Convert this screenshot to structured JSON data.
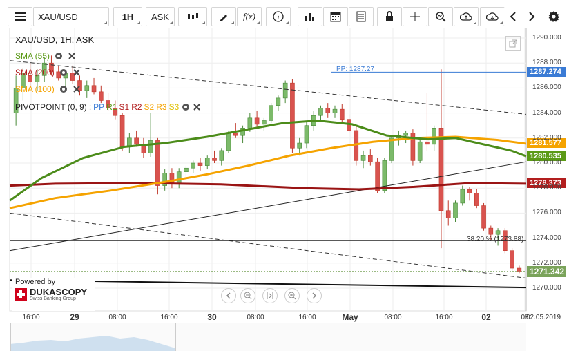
{
  "toolbar": {
    "instrument": "XAU/USD",
    "timeframe": "1H",
    "side": "ASK",
    "fx_label": "f(x)"
  },
  "chart": {
    "title": "XAU/USD, 1H, ASK",
    "legend": [
      {
        "label": "SMA (55)",
        "color": "#5b9a16"
      },
      {
        "label": "SMA (200)",
        "color": "#b21e1e"
      },
      {
        "label": "SMA (100)",
        "color": "#f5a300"
      }
    ],
    "pivot": {
      "prefix": "PIVOTPOINT (0, 9)",
      "levels": [
        {
          "label": "PP",
          "color": "#3a7bd5"
        },
        {
          "label": "R1",
          "color": "#5b9a16"
        },
        {
          "label": "S1",
          "color": "#b21e1e"
        },
        {
          "label": "R2",
          "color": "#b21e1e"
        },
        {
          "label": "S2",
          "color": "#f5a300"
        },
        {
          "label": "R3",
          "color": "#f5a300"
        },
        {
          "label": "S3",
          "color": "#e0c000"
        }
      ]
    },
    "pp_label": "PP: 1287.27",
    "fib_label": "38.20 % (1273.88)",
    "price_boxes": [
      {
        "value": "1287.274",
        "color": "#3a7bd5",
        "price": 1287.274
      },
      {
        "value": "1281.577",
        "color": "#f5a300",
        "price": 1281.577
      },
      {
        "value": "1280.535",
        "color": "#5b9a16",
        "price": 1280.535
      },
      {
        "value": "1278.373",
        "color": "#b21e1e",
        "price": 1278.373
      },
      {
        "value": "1271.342",
        "color": "#7aa35a",
        "price": 1271.342
      }
    ],
    "y_ticks": [
      "1290.000",
      "1288.000",
      "1286.000",
      "1284.000",
      "1282.000",
      "1280.000",
      "1278.000",
      "1276.000",
      "1274.000",
      "1272.000",
      "1270.000"
    ],
    "x_ticks": [
      {
        "label": "16:00",
        "bold": false
      },
      {
        "label": "29",
        "bold": true
      },
      {
        "label": "08:00",
        "bold": false
      },
      {
        "label": "16:00",
        "bold": false
      },
      {
        "label": "30",
        "bold": true
      },
      {
        "label": "08:00",
        "bold": false
      },
      {
        "label": "16:00",
        "bold": false
      },
      {
        "label": "May",
        "bold": true
      },
      {
        "label": "08:00",
        "bold": false
      },
      {
        "label": "16:00",
        "bold": false
      },
      {
        "label": "02",
        "bold": true
      },
      {
        "label": "08",
        "bold": false
      }
    ],
    "date_label": "02.05.2019",
    "powered_by": "Powered by",
    "brand": "DUKASCOPY",
    "brand_sub": "Swiss Banking Group"
  }
}
